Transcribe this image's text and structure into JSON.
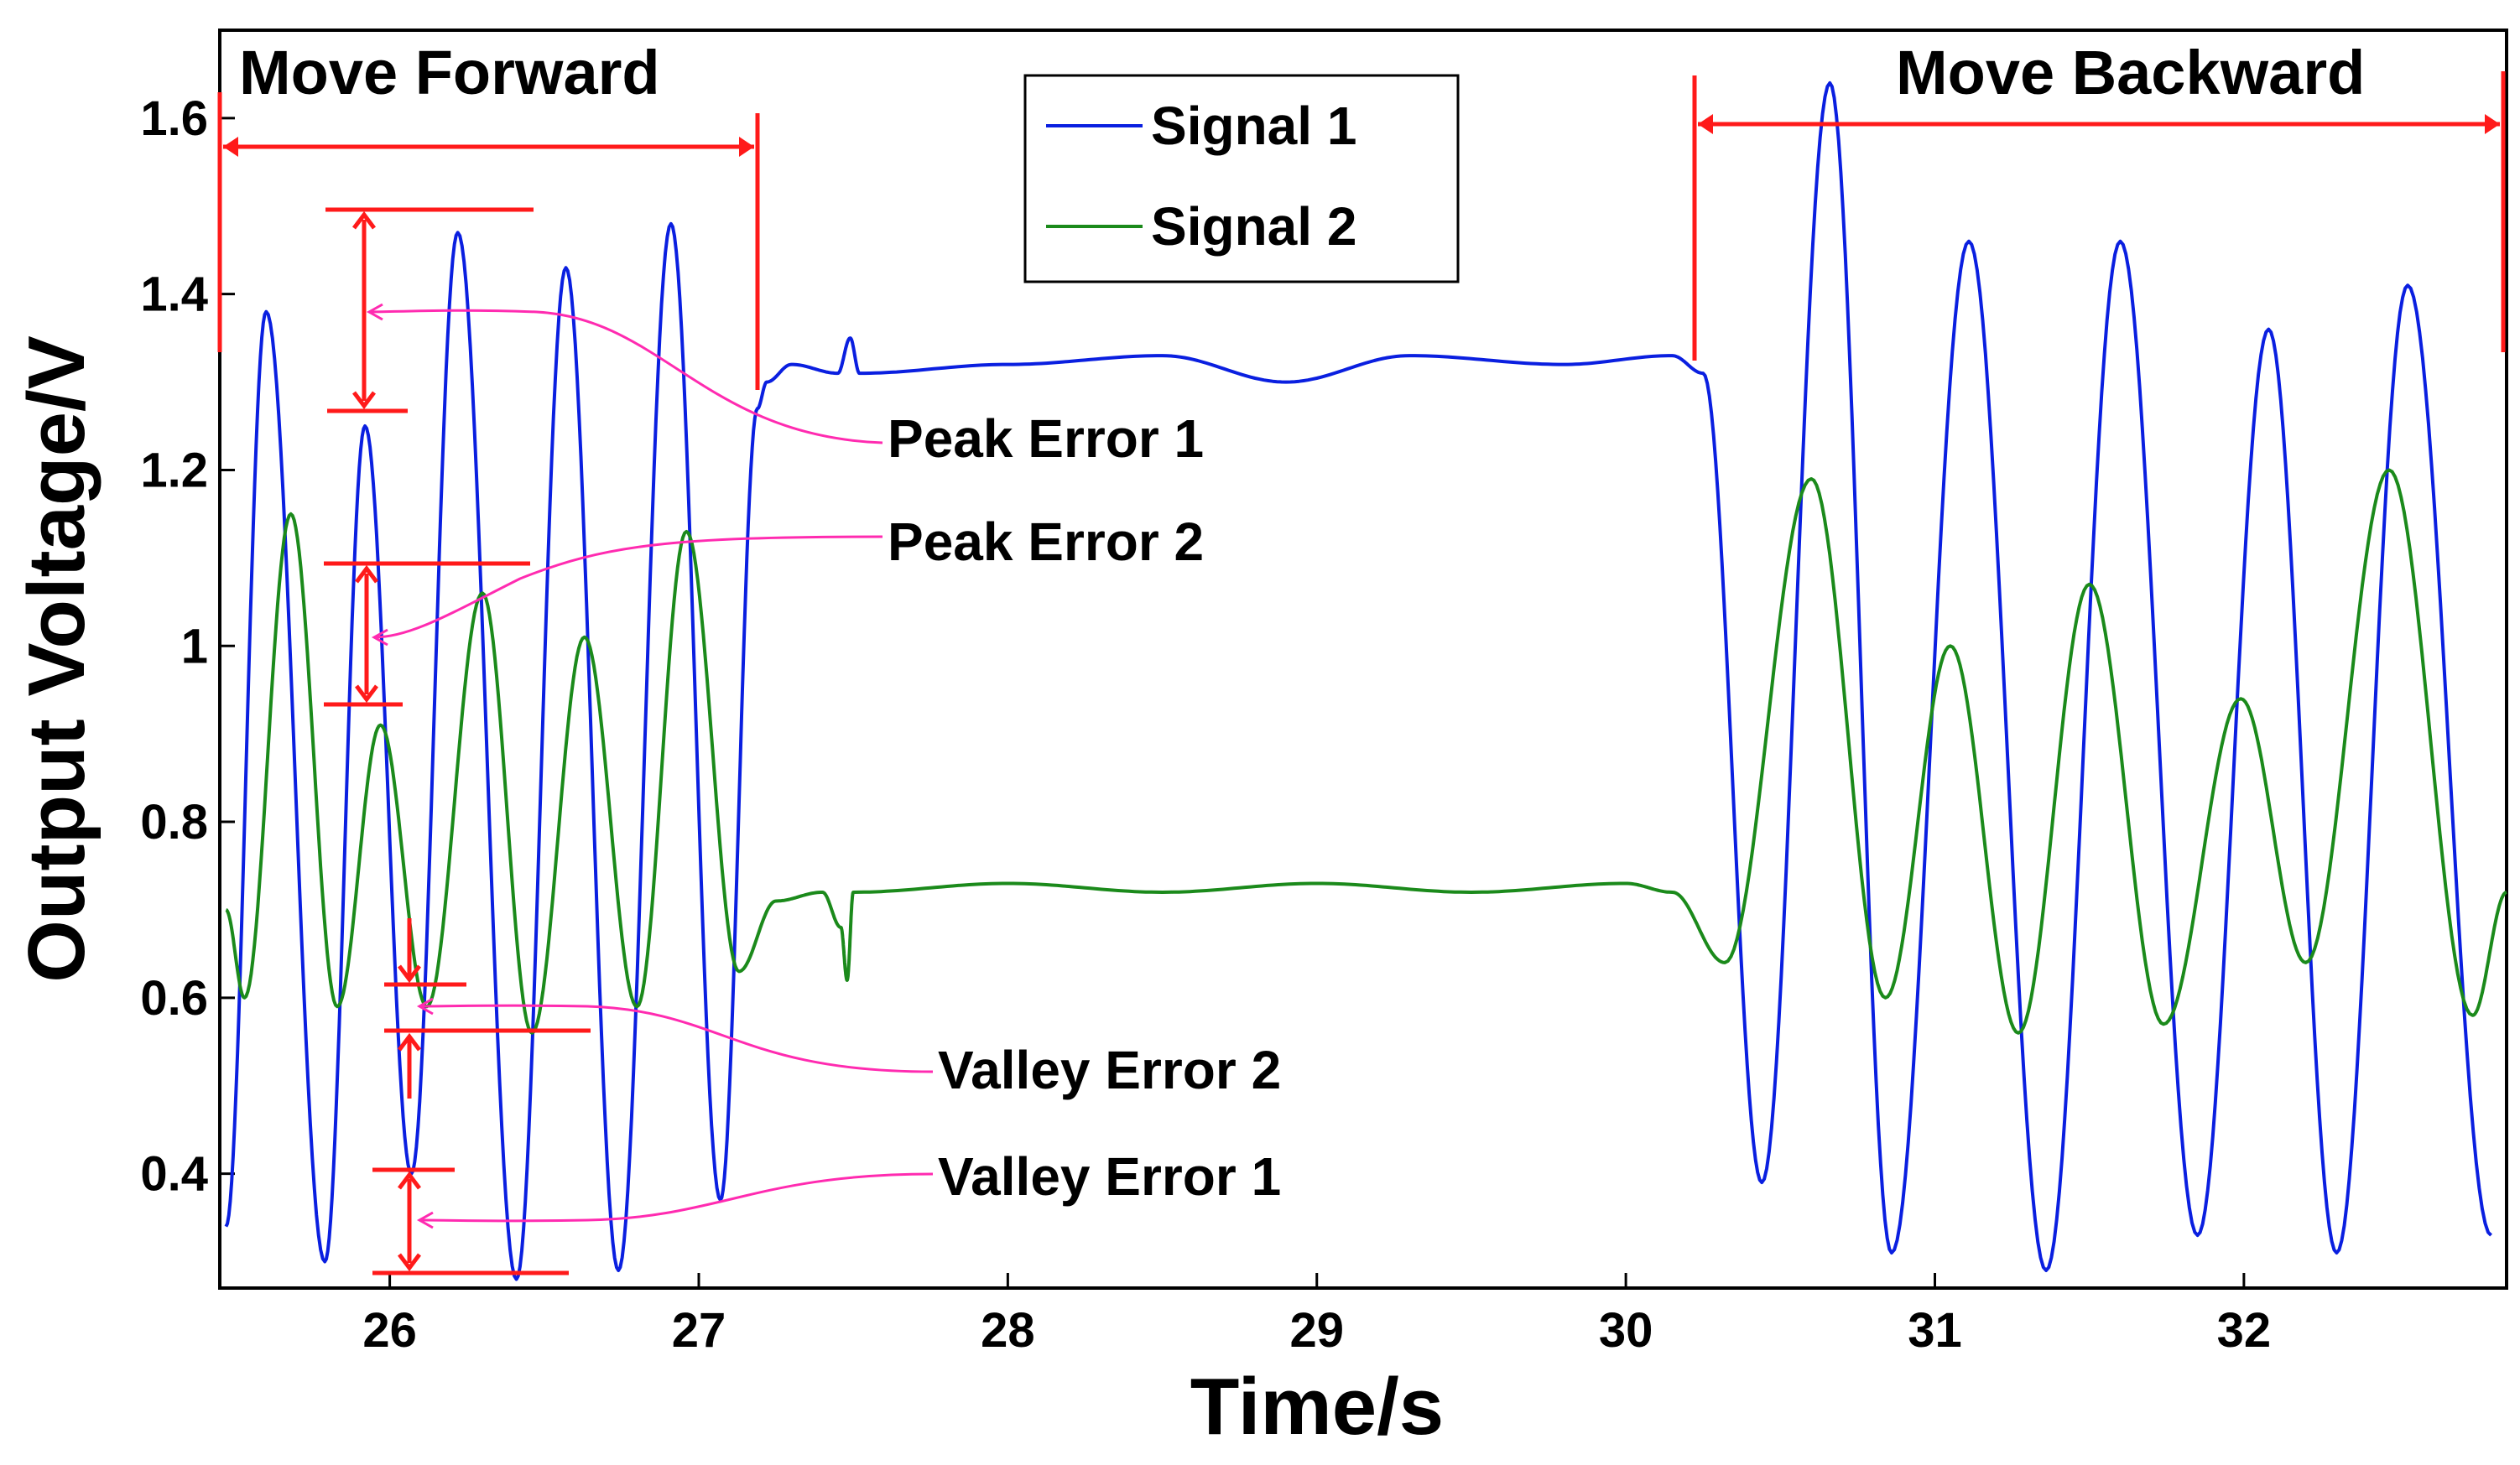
{
  "chart_data": {
    "type": "line",
    "title": "",
    "xlabel": "Time/s",
    "ylabel": "Output Voltage/V",
    "xlim": [
      25.45,
      32.85
    ],
    "ylim": [
      0.27,
      1.7
    ],
    "xticks": [
      26,
      27,
      28,
      29,
      30,
      31,
      32
    ],
    "yticks": [
      0.4,
      0.6,
      0.8,
      1,
      1.2,
      1.4,
      1.6
    ],
    "ytick_labels": [
      "0.4",
      "0.6",
      "0.8",
      "1",
      "1.2",
      "1.4",
      "1.6"
    ],
    "grid": false,
    "legend": "top-center",
    "series": [
      {
        "name": "Signal 1",
        "color": "#0a1fe0",
        "points": [
          [
            25.47,
            0.34
          ],
          [
            25.6,
            1.38
          ],
          [
            25.79,
            0.3
          ],
          [
            25.92,
            1.25
          ],
          [
            26.07,
            0.4
          ],
          [
            26.22,
            1.47
          ],
          [
            26.41,
            0.28
          ],
          [
            26.57,
            1.43
          ],
          [
            26.74,
            0.29
          ],
          [
            26.91,
            1.48
          ],
          [
            27.07,
            0.37
          ],
          [
            27.19,
            1.27
          ],
          [
            27.22,
            1.3
          ],
          [
            27.3,
            1.32
          ],
          [
            27.45,
            1.31
          ],
          [
            27.49,
            1.35
          ],
          [
            27.52,
            1.31
          ],
          [
            28.0,
            1.32
          ],
          [
            28.5,
            1.33
          ],
          [
            28.9,
            1.3
          ],
          [
            29.3,
            1.33
          ],
          [
            29.8,
            1.32
          ],
          [
            30.15,
            1.33
          ],
          [
            30.25,
            1.31
          ],
          [
            30.44,
            0.39
          ],
          [
            30.66,
            1.64
          ],
          [
            30.86,
            0.31
          ],
          [
            31.11,
            1.46
          ],
          [
            31.36,
            0.29
          ],
          [
            31.6,
            1.46
          ],
          [
            31.85,
            0.33
          ],
          [
            32.08,
            1.36
          ],
          [
            32.3,
            0.31
          ],
          [
            32.53,
            1.41
          ],
          [
            32.8,
            0.33
          ]
        ]
      },
      {
        "name": "Signal 2",
        "color": "#1b8a1b",
        "points": [
          [
            25.47,
            0.7
          ],
          [
            25.53,
            0.6
          ],
          [
            25.68,
            1.15
          ],
          [
            25.83,
            0.59
          ],
          [
            25.97,
            0.91
          ],
          [
            26.12,
            0.59
          ],
          [
            26.3,
            1.06
          ],
          [
            26.46,
            0.56
          ],
          [
            26.63,
            1.01
          ],
          [
            26.8,
            0.59
          ],
          [
            26.96,
            1.13
          ],
          [
            27.13,
            0.63
          ],
          [
            27.25,
            0.71
          ],
          [
            27.4,
            0.72
          ],
          [
            27.46,
            0.68
          ],
          [
            27.48,
            0.62
          ],
          [
            27.5,
            0.72
          ],
          [
            28.0,
            0.73
          ],
          [
            28.5,
            0.72
          ],
          [
            29.0,
            0.73
          ],
          [
            29.5,
            0.72
          ],
          [
            30.0,
            0.73
          ],
          [
            30.15,
            0.72
          ],
          [
            30.32,
            0.64
          ],
          [
            30.6,
            1.19
          ],
          [
            30.84,
            0.6
          ],
          [
            31.05,
            1.0
          ],
          [
            31.27,
            0.56
          ],
          [
            31.5,
            1.07
          ],
          [
            31.74,
            0.57
          ],
          [
            31.99,
            0.94
          ],
          [
            32.2,
            0.64
          ],
          [
            32.47,
            1.2
          ],
          [
            32.74,
            0.58
          ],
          [
            32.85,
            0.72
          ]
        ]
      }
    ],
    "annotations": {
      "move_forward": "Move Forward",
      "move_backward": "Move Backward",
      "peak_error_1": "Peak Error 1",
      "peak_error_2": "Peak Error 2",
      "valley_error_2": "Valley Error 2",
      "valley_error_1": "Valley Error 1",
      "annotation_color": "#ff1a1a",
      "pointer_color": "#ff2bb0"
    }
  }
}
